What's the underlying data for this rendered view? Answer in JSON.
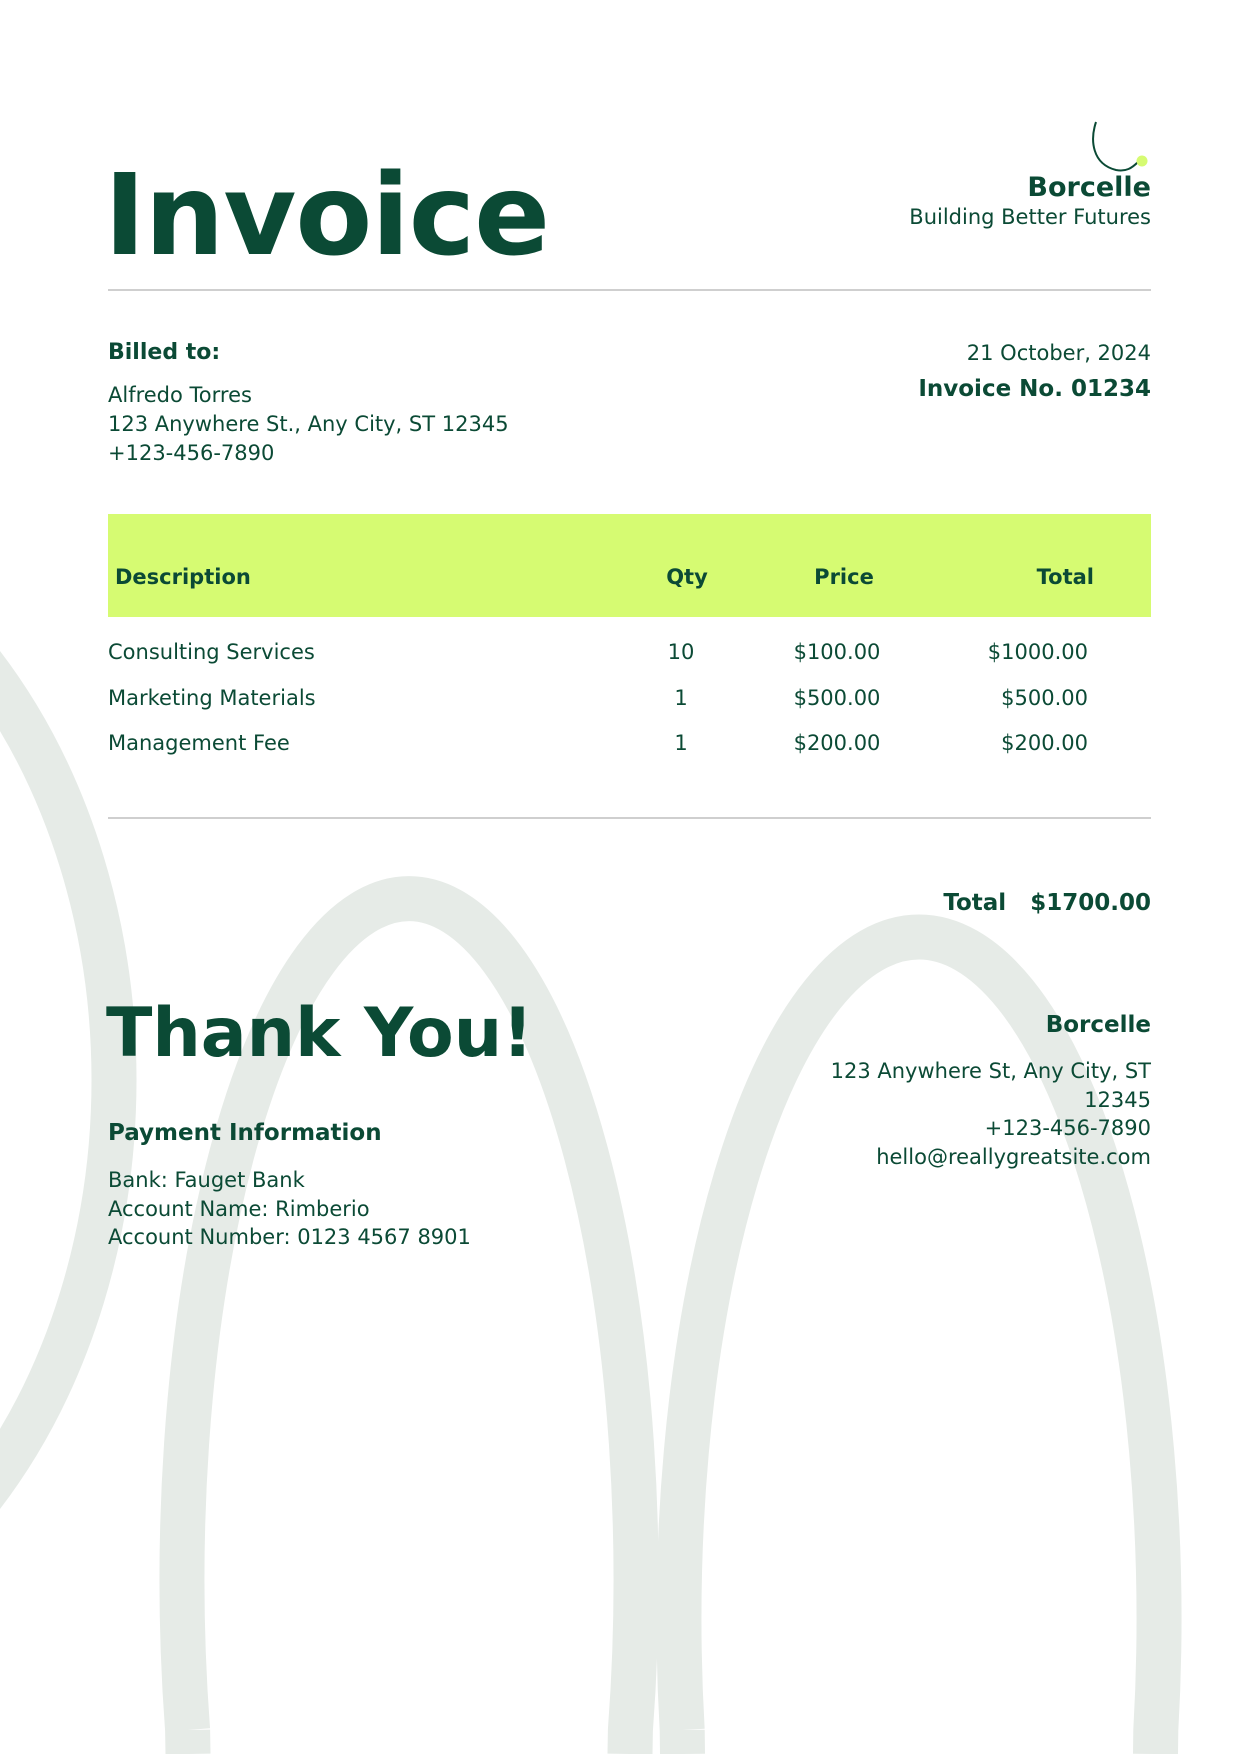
{
  "colors": {
    "primary": "#0b4a35",
    "accent": "#d6fb72",
    "background_arcs": "#e6ebe7",
    "divider": "#cfcfcf"
  },
  "header": {
    "title": "Invoice",
    "company": "Borcelle",
    "tagline": "Building Better Futures",
    "logo_icon": "curve-with-dot-logo"
  },
  "billing": {
    "label": "Billed to:",
    "name": "Alfredo Torres",
    "address": "123 Anywhere St., Any City, ST 12345",
    "phone": "+123-456-7890"
  },
  "meta": {
    "date": "21 October, 2024",
    "invoice_no": "Invoice No. 01234"
  },
  "table": {
    "headers": [
      "Description",
      "Qty",
      "Price",
      "Total"
    ],
    "rows": [
      [
        "Consulting Services",
        "10",
        "$100.00",
        "$1000.00"
      ],
      [
        "Marketing Materials",
        "1",
        "$500.00",
        "$500.00"
      ],
      [
        "Management Fee",
        "1",
        "$200.00",
        "$200.00"
      ]
    ]
  },
  "total": {
    "label": "Total",
    "value": "$1700.00"
  },
  "footer": {
    "thanks": "Thank You!",
    "payment_title": "Payment Information",
    "bank": "Bank: Fauget Bank",
    "account_name": "Account Name: Rimberio",
    "account_number": "Account Number: 0123 4567 8901",
    "company": "Borcelle",
    "address_line1": "123 Anywhere St, Any City, ST",
    "address_line2": "12345",
    "phone": "+123-456-7890",
    "email": "hello@reallygreatsite.com"
  }
}
